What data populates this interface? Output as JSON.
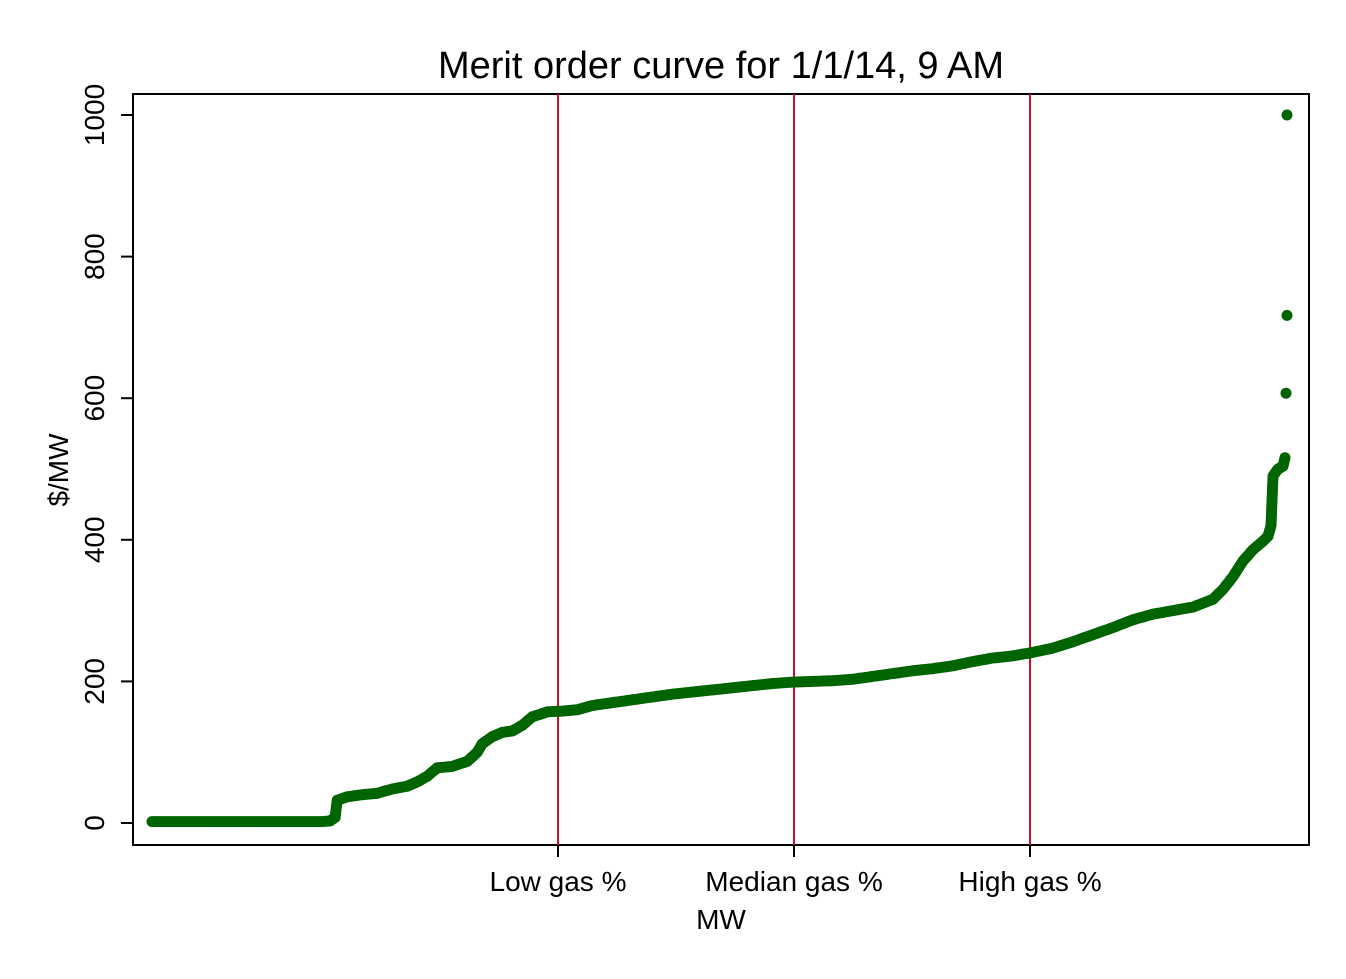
{
  "chart_data": {
    "type": "scatter",
    "title": "Merit order curve for 1/1/14, 9 AM",
    "xlabel": "MW",
    "ylabel": "$/MW",
    "ylim": [
      -30,
      1030
    ],
    "yticks": [
      "0",
      "200",
      "400",
      "600",
      "800",
      "1000"
    ],
    "xticks": [
      "Low gas %",
      "Median gas %",
      "High gas %"
    ],
    "colors": {
      "points": "#006400",
      "reference_lines": "#c8102e"
    },
    "grid": false,
    "legend": "none",
    "curve_points": [
      [
        0,
        2
      ],
      [
        10,
        2
      ],
      [
        20,
        2
      ],
      [
        30,
        2
      ],
      [
        40,
        2
      ],
      [
        50,
        2
      ],
      [
        60,
        2
      ],
      [
        70,
        2
      ],
      [
        80,
        2
      ],
      [
        90,
        2
      ],
      [
        100,
        2
      ],
      [
        110,
        2
      ],
      [
        120,
        2
      ],
      [
        130,
        2
      ],
      [
        140,
        2
      ],
      [
        150,
        2
      ],
      [
        160,
        2
      ],
      [
        170,
        2
      ],
      [
        178,
        3
      ],
      [
        183,
        8
      ],
      [
        185,
        32
      ],
      [
        195,
        37
      ],
      [
        210,
        40
      ],
      [
        225,
        42
      ],
      [
        240,
        48
      ],
      [
        255,
        52
      ],
      [
        265,
        58
      ],
      [
        275,
        66
      ],
      [
        285,
        78
      ],
      [
        300,
        80
      ],
      [
        315,
        87
      ],
      [
        325,
        100
      ],
      [
        330,
        112
      ],
      [
        340,
        122
      ],
      [
        350,
        128
      ],
      [
        360,
        130
      ],
      [
        370,
        138
      ],
      [
        380,
        150
      ],
      [
        395,
        157
      ],
      [
        410,
        158
      ],
      [
        425,
        160
      ],
      [
        440,
        166
      ],
      [
        460,
        170
      ],
      [
        480,
        174
      ],
      [
        500,
        178
      ],
      [
        520,
        182
      ],
      [
        540,
        185
      ],
      [
        560,
        188
      ],
      [
        580,
        191
      ],
      [
        600,
        194
      ],
      [
        620,
        197
      ],
      [
        640,
        199
      ],
      [
        660,
        200
      ],
      [
        680,
        201
      ],
      [
        700,
        203
      ],
      [
        720,
        207
      ],
      [
        740,
        211
      ],
      [
        760,
        215
      ],
      [
        780,
        218
      ],
      [
        800,
        222
      ],
      [
        820,
        228
      ],
      [
        840,
        233
      ],
      [
        860,
        236
      ],
      [
        880,
        241
      ],
      [
        900,
        247
      ],
      [
        920,
        256
      ],
      [
        940,
        266
      ],
      [
        960,
        276
      ],
      [
        980,
        287
      ],
      [
        1000,
        295
      ],
      [
        1020,
        300
      ],
      [
        1040,
        305
      ],
      [
        1060,
        316
      ],
      [
        1070,
        330
      ],
      [
        1080,
        348
      ],
      [
        1090,
        370
      ],
      [
        1100,
        386
      ],
      [
        1110,
        398
      ],
      [
        1115,
        405
      ],
      [
        1118,
        420
      ],
      [
        1120,
        490
      ],
      [
        1125,
        500
      ],
      [
        1130,
        504
      ],
      [
        1132,
        516
      ],
      [
        1133,
        607
      ],
      [
        1134,
        717
      ],
      [
        1134,
        1000
      ]
    ]
  }
}
